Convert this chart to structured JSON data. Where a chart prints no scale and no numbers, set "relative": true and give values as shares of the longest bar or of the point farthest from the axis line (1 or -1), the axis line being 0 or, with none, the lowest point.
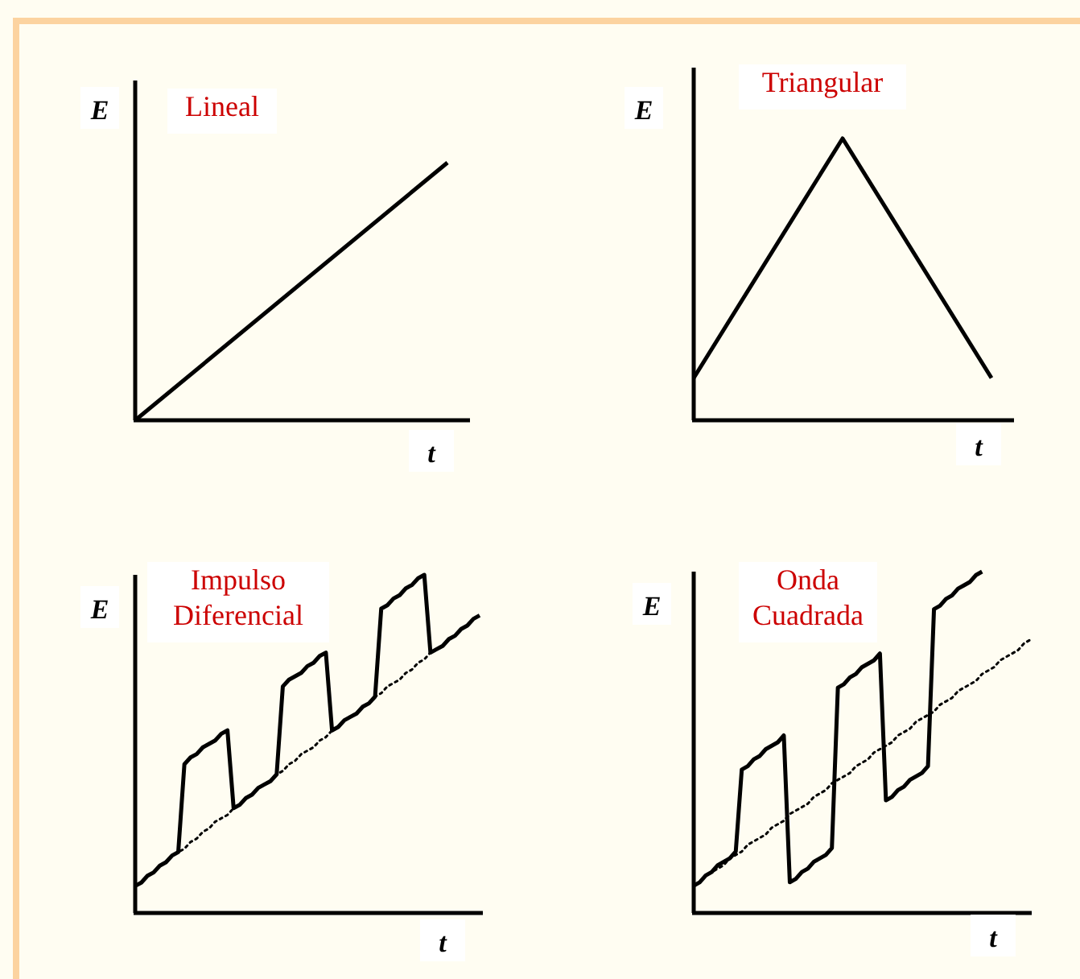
{
  "chart_data": [
    {
      "type": "line",
      "title": "Lineal",
      "xlabel": "t",
      "ylabel": "E",
      "relative": true,
      "categories": [
        null,
        null
      ],
      "series": [
        {
          "color": "#000000",
          "values": [
            0,
            1
          ]
        }
      ]
    },
    {
      "type": "line",
      "title": "Triangular",
      "xlabel": "t",
      "ylabel": "E",
      "relative": true,
      "categories": [
        null,
        null,
        null
      ],
      "series": [
        {
          "color": "#000000",
          "values": [
            0.15,
            1,
            0.15
          ]
        }
      ]
    },
    {
      "type": "line",
      "title": "Impulso\nDiferencial",
      "xlabel": "t",
      "ylabel": "E",
      "relative": true,
      "categories": [
        null,
        null,
        null,
        null,
        null,
        null,
        null,
        null,
        null,
        null,
        null,
        null,
        null,
        null,
        null,
        null,
        null,
        null,
        null,
        null,
        null,
        null,
        null,
        null,
        null,
        null,
        null,
        null,
        null,
        null,
        null,
        null,
        null,
        null,
        null,
        null,
        null,
        null,
        null,
        null,
        null,
        null,
        null,
        null,
        null,
        null,
        null,
        null,
        null,
        null,
        null,
        null,
        null,
        null,
        null,
        null,
        null
      ],
      "series": [
        {
          "color": "#000000",
          "line_style": "dotted",
          "values": [
            0.08,
            0.09,
            0.11,
            0.12,
            0.14,
            0.15,
            0.17,
            0.18,
            0.19,
            0.21,
            0.22,
            0.24,
            0.25,
            0.27,
            0.28,
            0.29,
            0.31,
            0.32,
            0.34,
            0.35,
            0.37,
            0.38,
            0.39,
            0.41,
            0.42,
            0.44,
            0.45,
            0.47,
            0.48,
            0.49,
            0.51,
            0.52,
            0.54,
            0.55,
            0.57,
            0.58,
            0.59,
            0.61,
            0.62,
            0.64,
            0.65,
            0.67,
            0.68,
            0.69,
            0.71,
            0.72,
            0.74,
            0.75,
            0.77,
            0.78,
            0.79,
            0.81,
            0.82,
            0.84,
            0.85,
            0.87,
            0.88
          ]
        },
        {
          "color": "#000000",
          "values": [
            0.08,
            0.09,
            0.11,
            0.12,
            0.14,
            0.15,
            0.17,
            0.18,
            0.44,
            0.46,
            0.47,
            0.49,
            0.5,
            0.51,
            0.53,
            0.54,
            0.31,
            0.32,
            0.34,
            0.35,
            0.37,
            0.38,
            0.39,
            0.41,
            0.67,
            0.69,
            0.7,
            0.71,
            0.73,
            0.74,
            0.76,
            0.77,
            0.54,
            0.55,
            0.57,
            0.58,
            0.59,
            0.61,
            0.62,
            0.64,
            0.9,
            0.91,
            0.93,
            0.94,
            0.96,
            0.97,
            0.99,
            1,
            0.77,
            0.78,
            0.79,
            0.81,
            0.82,
            0.84,
            0.85,
            0.87,
            0.88
          ]
        }
      ]
    },
    {
      "type": "line",
      "title": "Onda\nCuadrada",
      "xlabel": "t",
      "ylabel": "E",
      "relative": true,
      "categories": [
        null,
        null,
        null,
        null,
        null,
        null,
        null,
        null,
        null,
        null,
        null,
        null,
        null,
        null,
        null,
        null,
        null,
        null,
        null,
        null,
        null,
        null,
        null,
        null,
        null,
        null,
        null,
        null,
        null,
        null,
        null,
        null,
        null,
        null,
        null,
        null,
        null,
        null,
        null,
        null,
        null,
        null,
        null,
        null,
        null,
        null,
        null,
        null,
        null,
        null,
        null,
        null,
        null,
        null,
        null,
        null,
        null
      ],
      "series": [
        {
          "color": "#000000",
          "line_style": "dotted",
          "values": [
            0.08,
            0.09,
            0.11,
            0.12,
            0.13,
            0.14,
            0.16,
            0.17,
            0.18,
            0.2,
            0.21,
            0.22,
            0.23,
            0.25,
            0.26,
            0.27,
            0.29,
            0.3,
            0.31,
            0.32,
            0.34,
            0.35,
            0.36,
            0.38,
            0.39,
            0.4,
            0.41,
            0.43,
            0.44,
            0.45,
            0.47,
            0.48,
            0.49,
            0.5,
            0.52,
            0.53,
            0.54,
            0.56,
            0.57,
            0.58,
            0.59,
            0.61,
            0.62,
            0.63,
            0.65,
            0.66,
            0.67,
            0.68,
            0.7,
            0.71,
            0.72,
            0.74,
            0.75,
            0.76,
            0.77,
            0.79,
            0.8
          ]
        },
        {
          "color": "#000000",
          "values": [
            0.08,
            0.09,
            0.11,
            0.12,
            0.14,
            0.15,
            0.16,
            0.18,
            0.42,
            0.43,
            0.45,
            0.46,
            0.48,
            0.49,
            0.5,
            0.52,
            0.09,
            0.1,
            0.12,
            0.13,
            0.15,
            0.16,
            0.17,
            0.19,
            0.66,
            0.67,
            0.69,
            0.7,
            0.72,
            0.73,
            0.74,
            0.76,
            0.33,
            0.34,
            0.36,
            0.37,
            0.39,
            0.4,
            0.41,
            0.43,
            0.89,
            0.9,
            0.92,
            0.93,
            0.95,
            0.96,
            0.97,
            0.99,
            1,
            null,
            null,
            null,
            null,
            null,
            null,
            null,
            null
          ]
        }
      ]
    }
  ]
}
